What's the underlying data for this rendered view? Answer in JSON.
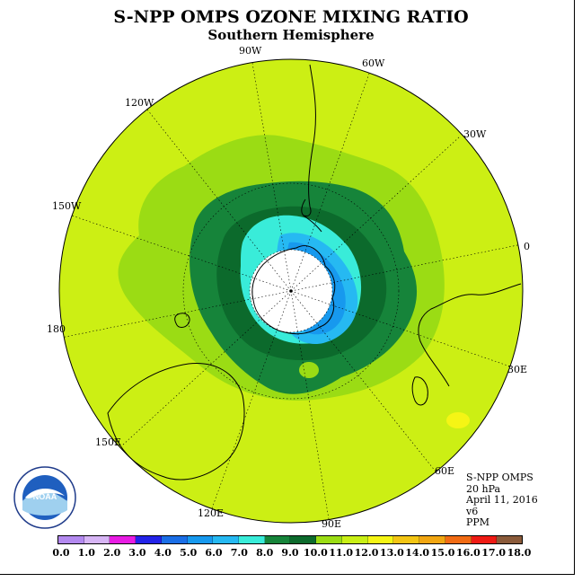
{
  "title": "S-NPP OMPS OZONE MIXING RATIO",
  "subtitle": "Southern Hemisphere",
  "longitude_labels": [
    "90W",
    "60W",
    "120W",
    "30W",
    "150W",
    "0",
    "180",
    "30E",
    "150E",
    "60E",
    "120E",
    "90E"
  ],
  "info": {
    "instrument": "S-NPP OMPS",
    "level": "20 hPa",
    "date": "April 11, 2016",
    "version": "v6",
    "units": "PPM"
  },
  "logo": {
    "icon": "noaa-logo",
    "text": "NOAA"
  },
  "colorbar": {
    "ticks": [
      "0.0",
      "1.0",
      "2.0",
      "3.0",
      "4.0",
      "5.0",
      "6.0",
      "7.0",
      "8.0",
      "9.0",
      "10.0",
      "11.0",
      "12.0",
      "13.0",
      "14.0",
      "15.0",
      "16.0",
      "17.0",
      "18.0"
    ],
    "colors": [
      "#b389ef",
      "#d7b5f5",
      "#e81ce3",
      "#2323e8",
      "#1a6ee6",
      "#1799ee",
      "#26b9f2",
      "#39ecd9",
      "#16843a",
      "#0c6a2c",
      "#9bdc14",
      "#c9ef16",
      "#f5f515",
      "#f3c514",
      "#f1a612",
      "#f16b14",
      "#ee1a14",
      "#8a5a3a"
    ]
  },
  "map_colors": {
    "background": "#ccef14",
    "level_11": "#9bdc14",
    "level_10": "#16843a",
    "level_9": "#0c6a2c",
    "level_8": "#39ecd9",
    "level_7": "#26b9f2",
    "level_6": "#1799ee",
    "level_13": "#f5f515",
    "missing": "#ffffff"
  }
}
